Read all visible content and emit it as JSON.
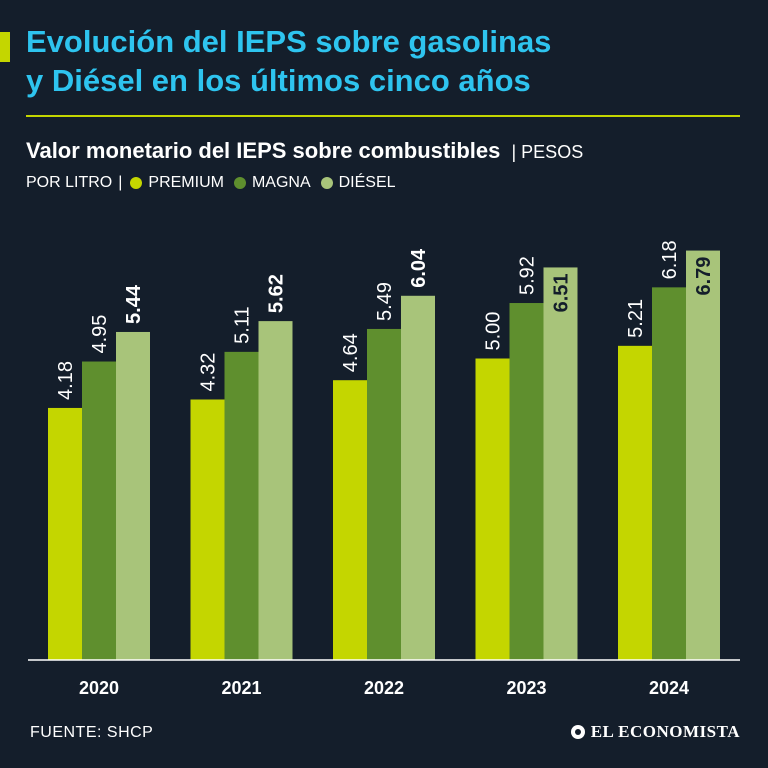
{
  "header": {
    "title_line1": "Evolución del IEPS sobre gasolinas",
    "title_line2": "y Diésel en los últimos cinco años",
    "subtitle": "Valor monetario del IEPS sobre combustibles",
    "units_line1": "PESOS",
    "units_line2": "POR LITRO"
  },
  "colors": {
    "background": "#141e2b",
    "title": "#2ec4ef",
    "accent": "#c4d600",
    "premium": "#c4d600",
    "magna": "#5f8f2e",
    "diesel": "#a8c47a"
  },
  "chart_data": {
    "type": "bar",
    "title": "Valor monetario del IEPS sobre combustibles",
    "ylabel": "Pesos por litro",
    "xlabel": "",
    "ylim": [
      0,
      7
    ],
    "grid": false,
    "legend_position": "top-left",
    "categories": [
      "2020",
      "2021",
      "2022",
      "2023",
      "2024"
    ],
    "series": [
      {
        "name": "PREMIUM",
        "values": [
          4.18,
          4.32,
          4.64,
          5.0,
          5.21
        ],
        "labels": [
          "4.18",
          "4.32",
          "4.64",
          "5.00",
          "5.21"
        ],
        "bold": false
      },
      {
        "name": "MAGNA",
        "values": [
          4.95,
          5.11,
          5.49,
          5.92,
          6.18
        ],
        "labels": [
          "4.95",
          "5.11",
          "5.49",
          "5.92",
          "6.18"
        ],
        "bold": false
      },
      {
        "name": "DIÉSEL",
        "values": [
          5.44,
          5.62,
          6.04,
          6.51,
          6.79
        ],
        "labels": [
          "5.44",
          "5.62",
          "6.04",
          "6.51",
          "6.79"
        ],
        "bold": true
      }
    ]
  },
  "footer": {
    "source": "FUENTE: SHCP",
    "brand": "EL ECONOMISTA"
  }
}
